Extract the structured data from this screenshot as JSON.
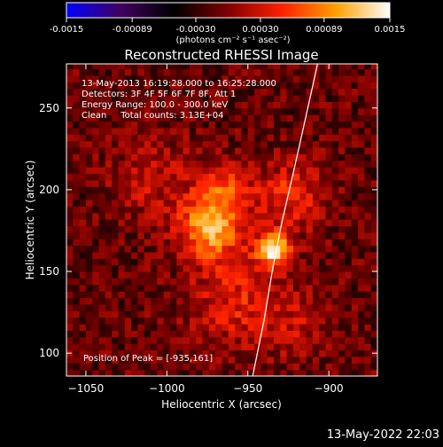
{
  "colorbar": {
    "tick_labels": [
      "-0.0015",
      "-0.00089",
      "-0.00030",
      "0.00030",
      "0.00089",
      "0.0015"
    ],
    "tick_values": [
      -0.0015,
      -0.00089,
      -0.0003,
      0.0003,
      0.00089,
      0.0015
    ],
    "range": [
      -0.0015,
      0.0015
    ],
    "units_label": "(photons cm⁻² s⁻¹ asec⁻²)",
    "colors": [
      "#0000ff",
      "#400060",
      "#000000",
      "#800000",
      "#ff2000",
      "#ffa000",
      "#ffffff"
    ]
  },
  "chart_data": {
    "type": "heatmap",
    "title": "Reconstructed RHESSI Image",
    "xlabel": "Heliocentric X (arcsec)",
    "ylabel": "Heliocentric Y (arcsec)",
    "xlim": [
      -1062,
      -870
    ],
    "ylim": [
      86,
      277
    ],
    "xticks": [
      -1050,
      -1000,
      -950,
      -900
    ],
    "yticks": [
      100,
      150,
      200,
      250
    ],
    "xtick_labels": [
      "−1050",
      "−1000",
      "−950",
      "−900"
    ],
    "ytick_labels": [
      "100",
      "150",
      "200",
      "250"
    ],
    "info_lines": [
      "13-May-2013 16:19:28.000 to 16:25:28.000",
      "Detectors: 3F 4F 5F 6F 7F 8F, Att 1",
      "Energy Range: 100.0 - 300.0 keV",
      "Clean     Total counts: 3.13E+04"
    ],
    "peak_label": "Position of Peak = [-935,161]",
    "peak": [
      -935,
      161
    ],
    "limb_curve": [
      [
        -947,
        86
      ],
      [
        -940,
        120
      ],
      [
        -935,
        150
      ],
      [
        -929,
        180
      ],
      [
        -922,
        210
      ],
      [
        -913,
        250
      ],
      [
        -907,
        277
      ]
    ],
    "emission_sources": [
      {
        "x": -936,
        "y": 162,
        "amplitude": 1.0,
        "width": 7
      },
      {
        "x": -975,
        "y": 175,
        "amplitude": 0.75,
        "width": 14
      },
      {
        "x": -965,
        "y": 200,
        "amplitude": 0.4,
        "width": 12
      },
      {
        "x": -960,
        "y": 130,
        "amplitude": 0.35,
        "width": 20
      },
      {
        "x": -925,
        "y": 195,
        "amplitude": 0.4,
        "width": 15
      },
      {
        "x": -1010,
        "y": 205,
        "amplitude": 0.25,
        "width": 18
      },
      {
        "x": -920,
        "y": 115,
        "amplitude": 0.2,
        "width": 15
      }
    ]
  },
  "footer_timestamp": "13-May-2022 22:03"
}
